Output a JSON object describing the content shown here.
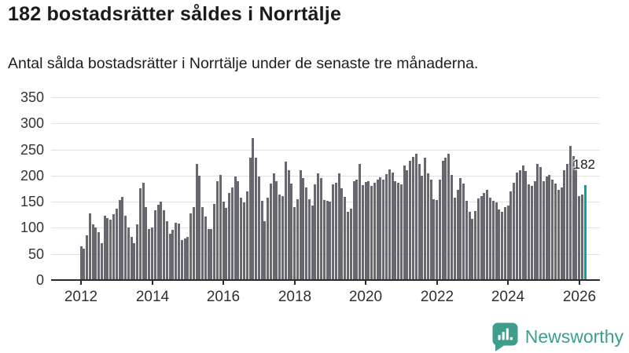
{
  "header": {
    "title": "182 bostadsrätter såldes i Norrtälje",
    "subtitle": "Antal sålda bostadsrätter i Norrtälje under de senaste tre månaderna."
  },
  "chart_data": {
    "type": "bar",
    "title": "182 bostadsrätter såldes i Norrtälje",
    "subtitle": "Antal sålda bostadsrätter i Norrtälje under de senaste tre månaderna.",
    "xlabel": "",
    "ylabel": "",
    "ylim": [
      0,
      350
    ],
    "yticks": [
      0,
      50,
      100,
      150,
      200,
      250,
      300,
      350
    ],
    "grid": true,
    "x_start": "2012-01",
    "x_tick_labels": [
      "2012",
      "2014",
      "2016",
      "2018",
      "2020",
      "2022",
      "2024",
      "2026"
    ],
    "x_tick_month_index": [
      0,
      24,
      48,
      72,
      96,
      120,
      144,
      168
    ],
    "bar_color": "#67676f",
    "values": [
      64,
      60,
      86,
      128,
      107,
      101,
      91,
      71,
      123,
      118,
      116,
      126,
      136,
      153,
      159,
      123,
      101,
      83,
      71,
      107,
      176,
      186,
      140,
      97,
      100,
      133,
      144,
      150,
      134,
      113,
      88,
      96,
      110,
      108,
      76,
      80,
      82,
      127,
      140,
      222,
      200,
      140,
      121,
      98,
      98,
      146,
      190,
      202,
      150,
      138,
      167,
      178,
      198,
      190,
      157,
      148,
      169,
      235,
      272,
      234,
      198,
      152,
      113,
      157,
      185,
      205,
      190,
      163,
      160,
      227,
      210,
      185,
      140,
      155,
      210,
      196,
      178,
      155,
      143,
      183,
      204,
      196,
      153,
      152,
      150,
      183,
      187,
      204,
      176,
      159,
      130,
      136,
      190,
      193,
      222,
      182,
      188,
      190,
      180,
      186,
      193,
      197,
      192,
      203,
      212,
      206,
      190,
      187,
      183,
      220,
      211,
      228,
      236,
      242,
      222,
      200,
      235,
      205,
      193,
      155,
      153,
      192,
      228,
      235,
      242,
      201,
      157,
      173,
      196,
      185,
      152,
      130,
      117,
      132,
      156,
      160,
      166,
      173,
      158,
      152,
      149,
      135,
      131,
      140,
      143,
      170,
      186,
      206,
      211,
      219,
      209,
      183,
      180,
      190,
      223,
      216,
      190,
      198,
      202,
      192,
      185,
      172,
      177,
      210,
      222,
      257,
      238,
      220,
      161,
      163,
      182
    ],
    "highlight": {
      "index": 170,
      "value": 182,
      "label": "182",
      "color": "#00a5a5"
    }
  },
  "footer": {
    "brand": "Newsworthy",
    "brand_color": "#3d9e8e",
    "logo_icon": "newsworthy-speech-bubble-chart-icon"
  },
  "colors": {
    "bar": "#67676f",
    "highlight": "#00a5a5",
    "gridline": "#e1e1e1",
    "axis": "#2b2b2b",
    "text": "#1b1b1b",
    "tick_text": "#333333"
  }
}
